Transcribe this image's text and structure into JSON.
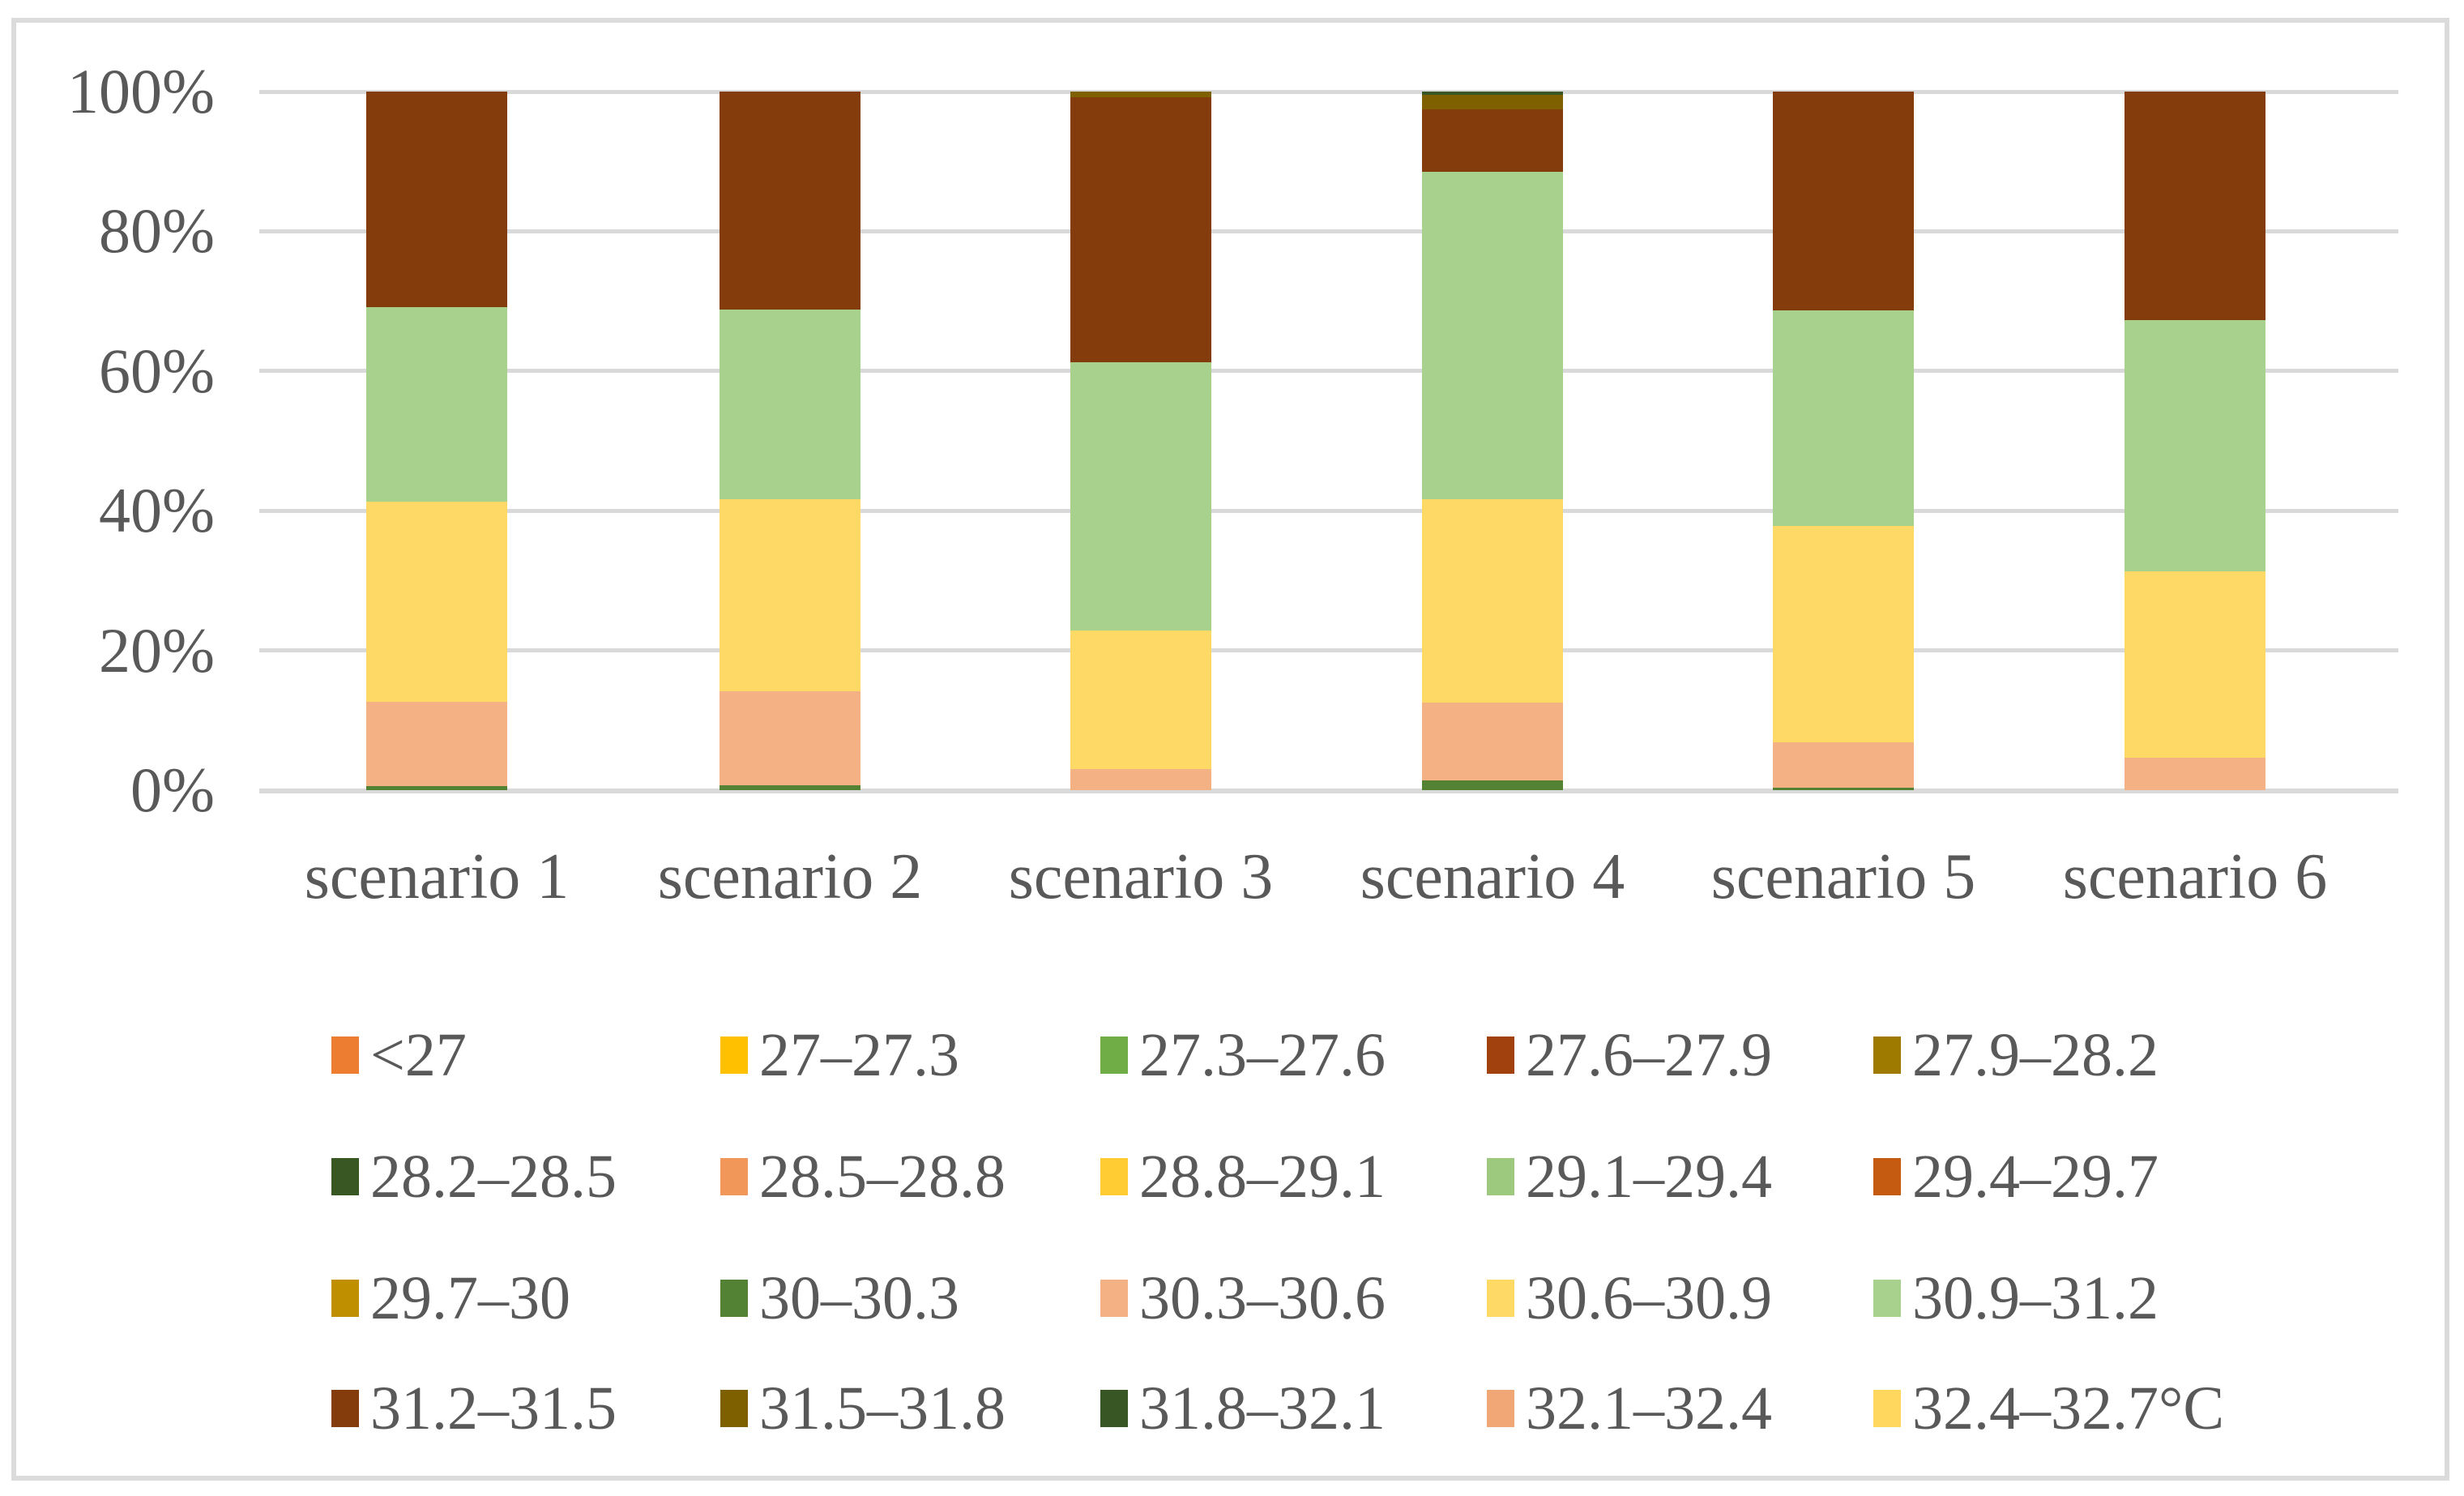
{
  "figure": {
    "background": "#ffffff",
    "border_color": "#DBDBDB",
    "gridline_color": "#D9D9D9",
    "text_color": "#595959"
  },
  "chart_data": {
    "type": "bar",
    "stacked": true,
    "percent_axis": true,
    "title": "",
    "xlabel": "",
    "ylabel": "",
    "ylim": [
      0,
      100
    ],
    "grid": true,
    "legend_position": "bottom",
    "categories": [
      "scenario 1",
      "scenario 2",
      "scenario 3",
      "scenario 4",
      "scenario 5",
      "scenario 6"
    ],
    "y_ticks": [
      {
        "label": "100%",
        "value": 100
      },
      {
        "label": "80%",
        "value": 80
      },
      {
        "label": "60%",
        "value": 60
      },
      {
        "label": "40%",
        "value": 40
      },
      {
        "label": "20%",
        "value": 20
      },
      {
        "label": "0%",
        "value": 0
      }
    ],
    "series": [
      {
        "name": "<27",
        "color": "#ED7D31",
        "values": [
          0,
          0,
          0,
          0,
          0,
          0
        ]
      },
      {
        "name": "27–27.3",
        "color": "#FFC000",
        "values": [
          0,
          0,
          0,
          0,
          0,
          0
        ]
      },
      {
        "name": "27.3–27.6",
        "color": "#70AD47",
        "values": [
          0,
          0,
          0,
          0,
          0,
          0
        ]
      },
      {
        "name": "27.6–27.9",
        "color": "#A1410D",
        "values": [
          0,
          0,
          0,
          0,
          0,
          0
        ]
      },
      {
        "name": "27.9–28.2",
        "color": "#9E7A00",
        "values": [
          0,
          0,
          0,
          0,
          0,
          0
        ]
      },
      {
        "name": "28.2–28.5",
        "color": "#385723",
        "values": [
          0,
          0,
          0,
          0,
          0,
          0
        ]
      },
      {
        "name": "28.5–28.8",
        "color": "#F1975A",
        "values": [
          0,
          0,
          0,
          0,
          0,
          0
        ]
      },
      {
        "name": "28.8–29.1",
        "color": "#FFCD33",
        "values": [
          0,
          0,
          0,
          0,
          0,
          0
        ]
      },
      {
        "name": "29.1–29.4",
        "color": "#9DC97E",
        "values": [
          0,
          0,
          0,
          0,
          0,
          0
        ]
      },
      {
        "name": "29.4–29.7",
        "color": "#C55A11",
        "values": [
          0,
          0,
          0,
          0,
          0,
          0
        ]
      },
      {
        "name": "29.7–30",
        "color": "#BF8F00",
        "values": [
          0,
          0,
          0,
          0,
          0,
          0
        ]
      },
      {
        "name": "30–30.3",
        "color": "#548235",
        "values": [
          0.6,
          0.7,
          0,
          1.4,
          0.4,
          0
        ]
      },
      {
        "name": "30.3–30.6",
        "color": "#F4B183",
        "values": [
          12.1,
          13.5,
          3.0,
          11.1,
          6.4,
          4.6
        ]
      },
      {
        "name": "30.6–30.9",
        "color": "#FFD966",
        "values": [
          28.6,
          27.5,
          19.8,
          29.1,
          31.0,
          26.7
        ]
      },
      {
        "name": "30.9–31.2",
        "color": "#A9D18E",
        "values": [
          27.8,
          27.1,
          38.5,
          46.9,
          30.9,
          36.0
        ]
      },
      {
        "name": "31.2–31.5",
        "color": "#843C0C",
        "values": [
          30.9,
          31.2,
          37.9,
          8.9,
          31.3,
          32.7
        ]
      },
      {
        "name": "31.5–31.8",
        "color": "#7F6000",
        "values": [
          0,
          0,
          0.8,
          2.1,
          0,
          0
        ]
      },
      {
        "name": "31.8–32.1",
        "color": "#375623",
        "values": [
          0,
          0,
          0,
          0.5,
          0,
          0
        ]
      },
      {
        "name": "32.1–32.4",
        "color": "#F2A876",
        "values": [
          0,
          0,
          0,
          0,
          0,
          0
        ]
      },
      {
        "name": "32.4–32.7°C",
        "color": "#FFD75E",
        "values": [
          0,
          0,
          0,
          0,
          0,
          0
        ]
      }
    ]
  }
}
